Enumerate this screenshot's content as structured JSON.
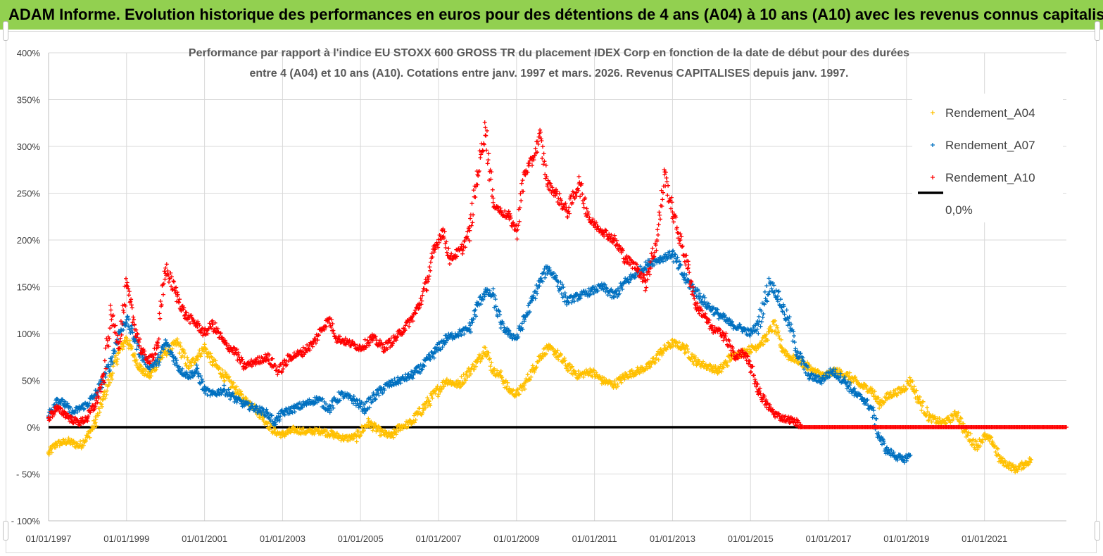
{
  "banner": {
    "title": "ADAM Informe. Evolution historique des performances en euros pour des détentions de 4 ans (A04) à 10 ans (A10) avec les revenus connus capitalisés"
  },
  "chart_data": {
    "type": "scatter",
    "title_line1": "Performance par rapport à l'indice EU STOXX 600 GROSS TR  du placement IDEX Corp en fonction de la date de début pour des durées",
    "title_line2": "entre 4 (A04) et 10 ans (A10). Cotations entre janv. 1997 et mars. 2026. Revenus CAPITALISES depuis janv. 1997.",
    "x_range": [
      1997.0,
      2023.1
    ],
    "ylim": [
      -100,
      400
    ],
    "y_ticks": [
      -100,
      -50,
      0,
      50,
      100,
      150,
      200,
      250,
      300,
      350,
      400
    ],
    "y_tick_labels": [
      "- 100%",
      "- 50%",
      "0%",
      "50%",
      "100%",
      "150%",
      "200%",
      "250%",
      "300%",
      "350%",
      "400%"
    ],
    "x_ticks": [
      1997,
      1999,
      2001,
      2003,
      2005,
      2007,
      2009,
      2011,
      2013,
      2015,
      2017,
      2019,
      2021
    ],
    "x_tick_labels": [
      "01/01/1997",
      "01/01/1999",
      "01/01/2001",
      "01/01/2003",
      "01/01/2005",
      "01/01/2007",
      "01/01/2009",
      "01/01/2011",
      "01/01/2013",
      "01/01/2015",
      "01/01/2017",
      "01/01/2019",
      "01/01/2021"
    ],
    "grid": true,
    "legend_position": "top-right",
    "series": [
      {
        "name": "Rendement_A04",
        "color": "#ffc000",
        "marker": "+",
        "points": [
          [
            1997.0,
            -28
          ],
          [
            1997.2,
            -18
          ],
          [
            1997.5,
            -15
          ],
          [
            1997.8,
            -20
          ],
          [
            1998.0,
            -10
          ],
          [
            1998.2,
            5
          ],
          [
            1998.4,
            30
          ],
          [
            1998.6,
            55
          ],
          [
            1998.8,
            80
          ],
          [
            1999.0,
            95
          ],
          [
            1999.2,
            75
          ],
          [
            1999.4,
            60
          ],
          [
            1999.6,
            55
          ],
          [
            1999.8,
            70
          ],
          [
            2000.0,
            80
          ],
          [
            2000.3,
            90
          ],
          [
            2000.6,
            65
          ],
          [
            2000.8,
            75
          ],
          [
            2001.0,
            85
          ],
          [
            2001.2,
            70
          ],
          [
            2001.5,
            55
          ],
          [
            2001.8,
            40
          ],
          [
            2002.0,
            30
          ],
          [
            2002.2,
            25
          ],
          [
            2002.4,
            15
          ],
          [
            2002.6,
            5
          ],
          [
            2002.8,
            -5
          ],
          [
            2003.0,
            -8
          ],
          [
            2003.3,
            -3
          ],
          [
            2003.6,
            -5
          ],
          [
            2004.0,
            -4
          ],
          [
            2004.3,
            -8
          ],
          [
            2004.6,
            -12
          ],
          [
            2004.9,
            -10
          ],
          [
            2005.2,
            5
          ],
          [
            2005.5,
            -5
          ],
          [
            2005.8,
            -10
          ],
          [
            2006.0,
            0
          ],
          [
            2006.3,
            5
          ],
          [
            2006.6,
            20
          ],
          [
            2007.0,
            40
          ],
          [
            2007.2,
            50
          ],
          [
            2007.5,
            45
          ],
          [
            2007.8,
            60
          ],
          [
            2008.0,
            70
          ],
          [
            2008.2,
            85
          ],
          [
            2008.4,
            60
          ],
          [
            2008.6,
            55
          ],
          [
            2008.8,
            40
          ],
          [
            2009.0,
            35
          ],
          [
            2009.2,
            45
          ],
          [
            2009.4,
            60
          ],
          [
            2009.6,
            75
          ],
          [
            2009.8,
            85
          ],
          [
            2010.0,
            80
          ],
          [
            2010.3,
            65
          ],
          [
            2010.6,
            55
          ],
          [
            2010.9,
            60
          ],
          [
            2011.2,
            50
          ],
          [
            2011.5,
            45
          ],
          [
            2011.8,
            55
          ],
          [
            2012.1,
            60
          ],
          [
            2012.4,
            65
          ],
          [
            2012.7,
            80
          ],
          [
            2013.0,
            90
          ],
          [
            2013.3,
            85
          ],
          [
            2013.6,
            70
          ],
          [
            2013.9,
            65
          ],
          [
            2014.2,
            60
          ],
          [
            2014.5,
            75
          ],
          [
            2014.8,
            80
          ],
          [
            2015.1,
            85
          ],
          [
            2015.4,
            95
          ],
          [
            2015.6,
            110
          ],
          [
            2015.8,
            85
          ],
          [
            2016.0,
            75
          ],
          [
            2016.3,
            70
          ],
          [
            2016.6,
            60
          ],
          [
            2016.9,
            55
          ],
          [
            2017.2,
            60
          ],
          [
            2017.5,
            55
          ],
          [
            2017.8,
            45
          ],
          [
            2018.1,
            40
          ],
          [
            2018.3,
            25
          ],
          [
            2018.6,
            35
          ],
          [
            2018.9,
            40
          ],
          [
            2019.1,
            50
          ],
          [
            2019.3,
            30
          ],
          [
            2019.6,
            10
          ],
          [
            2019.9,
            5
          ],
          [
            2020.1,
            8
          ],
          [
            2020.3,
            15
          ],
          [
            2020.5,
            -5
          ],
          [
            2020.8,
            -20
          ],
          [
            2021.0,
            -10
          ],
          [
            2021.2,
            -15
          ],
          [
            2021.4,
            -35
          ],
          [
            2021.6,
            -40
          ],
          [
            2021.8,
            -45
          ],
          [
            2022.0,
            -40
          ],
          [
            2022.2,
            -35
          ]
        ]
      },
      {
        "name": "Rendement_A07",
        "color": "#0070c0",
        "marker": "+",
        "points": [
          [
            1997.0,
            12
          ],
          [
            1997.2,
            30
          ],
          [
            1997.4,
            25
          ],
          [
            1997.6,
            15
          ],
          [
            1997.8,
            20
          ],
          [
            1998.0,
            25
          ],
          [
            1998.2,
            35
          ],
          [
            1998.4,
            50
          ],
          [
            1998.6,
            70
          ],
          [
            1998.8,
            100
          ],
          [
            1999.0,
            115
          ],
          [
            1999.2,
            95
          ],
          [
            1999.4,
            75
          ],
          [
            1999.6,
            65
          ],
          [
            1999.8,
            70
          ],
          [
            2000.0,
            90
          ],
          [
            2000.2,
            75
          ],
          [
            2000.4,
            60
          ],
          [
            2000.6,
            55
          ],
          [
            2000.8,
            60
          ],
          [
            2001.0,
            40
          ],
          [
            2001.2,
            35
          ],
          [
            2001.5,
            40
          ],
          [
            2001.8,
            30
          ],
          [
            2002.0,
            25
          ],
          [
            2002.3,
            20
          ],
          [
            2002.6,
            15
          ],
          [
            2002.8,
            5
          ],
          [
            2003.0,
            15
          ],
          [
            2003.3,
            20
          ],
          [
            2003.6,
            25
          ],
          [
            2003.9,
            30
          ],
          [
            2004.2,
            20
          ],
          [
            2004.5,
            35
          ],
          [
            2004.8,
            30
          ],
          [
            2005.1,
            20
          ],
          [
            2005.4,
            35
          ],
          [
            2005.7,
            45
          ],
          [
            2006.0,
            50
          ],
          [
            2006.3,
            55
          ],
          [
            2006.6,
            65
          ],
          [
            2006.9,
            80
          ],
          [
            2007.2,
            95
          ],
          [
            2007.5,
            100
          ],
          [
            2007.8,
            105
          ],
          [
            2008.0,
            130
          ],
          [
            2008.2,
            145
          ],
          [
            2008.4,
            140
          ],
          [
            2008.6,
            110
          ],
          [
            2008.8,
            100
          ],
          [
            2009.0,
            95
          ],
          [
            2009.2,
            115
          ],
          [
            2009.4,
            135
          ],
          [
            2009.6,
            155
          ],
          [
            2009.8,
            170
          ],
          [
            2010.0,
            160
          ],
          [
            2010.3,
            135
          ],
          [
            2010.6,
            140
          ],
          [
            2010.9,
            145
          ],
          [
            2011.2,
            150
          ],
          [
            2011.5,
            140
          ],
          [
            2011.8,
            155
          ],
          [
            2012.1,
            165
          ],
          [
            2012.4,
            175
          ],
          [
            2012.7,
            180
          ],
          [
            2013.0,
            185
          ],
          [
            2013.3,
            160
          ],
          [
            2013.6,
            145
          ],
          [
            2013.9,
            130
          ],
          [
            2014.2,
            120
          ],
          [
            2014.5,
            110
          ],
          [
            2014.8,
            105
          ],
          [
            2015.0,
            100
          ],
          [
            2015.2,
            110
          ],
          [
            2015.5,
            155
          ],
          [
            2015.7,
            140
          ],
          [
            2016.0,
            110
          ],
          [
            2016.2,
            80
          ],
          [
            2016.5,
            55
          ],
          [
            2016.8,
            50
          ],
          [
            2017.1,
            60
          ],
          [
            2017.4,
            50
          ],
          [
            2017.7,
            35
          ],
          [
            2017.9,
            30
          ],
          [
            2018.1,
            20
          ],
          [
            2018.3,
            -10
          ],
          [
            2018.5,
            -25
          ],
          [
            2018.7,
            -30
          ],
          [
            2018.9,
            -35
          ],
          [
            2019.1,
            -30
          ]
        ]
      },
      {
        "name": "Rendement_A10",
        "color": "#ff0000",
        "marker": "+",
        "points": [
          [
            1997.0,
            10
          ],
          [
            1997.2,
            20
          ],
          [
            1997.4,
            15
          ],
          [
            1997.6,
            8
          ],
          [
            1997.8,
            5
          ],
          [
            1998.0,
            10
          ],
          [
            1998.2,
            25
          ],
          [
            1998.4,
            50
          ],
          [
            1998.6,
            120
          ],
          [
            1998.8,
            90
          ],
          [
            1999.0,
            150
          ],
          [
            1999.2,
            110
          ],
          [
            1999.4,
            80
          ],
          [
            1999.6,
            70
          ],
          [
            1999.8,
            90
          ],
          [
            2000.0,
            170
          ],
          [
            2000.3,
            140
          ],
          [
            2000.5,
            120
          ],
          [
            2000.8,
            110
          ],
          [
            2001.0,
            100
          ],
          [
            2001.2,
            110
          ],
          [
            2001.5,
            90
          ],
          [
            2001.8,
            80
          ],
          [
            2002.0,
            65
          ],
          [
            2002.3,
            70
          ],
          [
            2002.6,
            75
          ],
          [
            2002.9,
            60
          ],
          [
            2003.2,
            75
          ],
          [
            2003.5,
            80
          ],
          [
            2003.8,
            90
          ],
          [
            2004.0,
            105
          ],
          [
            2004.2,
            115
          ],
          [
            2004.4,
            95
          ],
          [
            2004.7,
            90
          ],
          [
            2005.0,
            85
          ],
          [
            2005.3,
            95
          ],
          [
            2005.6,
            85
          ],
          [
            2005.9,
            95
          ],
          [
            2006.1,
            105
          ],
          [
            2006.3,
            115
          ],
          [
            2006.5,
            130
          ],
          [
            2006.7,
            155
          ],
          [
            2006.9,
            190
          ],
          [
            2007.1,
            210
          ],
          [
            2007.3,
            180
          ],
          [
            2007.6,
            190
          ],
          [
            2007.8,
            210
          ],
          [
            2008.0,
            270
          ],
          [
            2008.2,
            320
          ],
          [
            2008.4,
            240
          ],
          [
            2008.6,
            230
          ],
          [
            2008.8,
            225
          ],
          [
            2009.0,
            210
          ],
          [
            2009.2,
            270
          ],
          [
            2009.4,
            285
          ],
          [
            2009.6,
            310
          ],
          [
            2009.8,
            260
          ],
          [
            2010.0,
            250
          ],
          [
            2010.3,
            230
          ],
          [
            2010.6,
            260
          ],
          [
            2010.9,
            220
          ],
          [
            2011.2,
            210
          ],
          [
            2011.5,
            200
          ],
          [
            2011.8,
            180
          ],
          [
            2012.1,
            170
          ],
          [
            2012.3,
            155
          ],
          [
            2012.6,
            200
          ],
          [
            2012.8,
            270
          ],
          [
            2013.0,
            230
          ],
          [
            2013.2,
            200
          ],
          [
            2013.4,
            170
          ],
          [
            2013.6,
            130
          ],
          [
            2013.8,
            120
          ],
          [
            2014.0,
            105
          ],
          [
            2014.3,
            100
          ],
          [
            2014.6,
            75
          ],
          [
            2014.8,
            80
          ],
          [
            2015.0,
            65
          ],
          [
            2015.2,
            40
          ],
          [
            2015.4,
            25
          ],
          [
            2015.6,
            15
          ],
          [
            2015.8,
            10
          ],
          [
            2016.0,
            8
          ],
          [
            2016.2,
            5
          ],
          [
            2016.3,
            0
          ],
          [
            2023.1,
            0
          ]
        ]
      }
    ],
    "legend": [
      {
        "label": "Rendement_A04",
        "color": "#ffc000",
        "marker": "+"
      },
      {
        "label": "Rendement_A07",
        "color": "#0070c0",
        "marker": "+"
      },
      {
        "label": "Rendement_A10",
        "color": "#ff0000",
        "marker": "+"
      },
      {
        "label": "0,0%",
        "color": "#000000",
        "marker": "line"
      }
    ],
    "reference_line": {
      "name": "0,0%",
      "value": 0,
      "color": "#000000"
    }
  }
}
